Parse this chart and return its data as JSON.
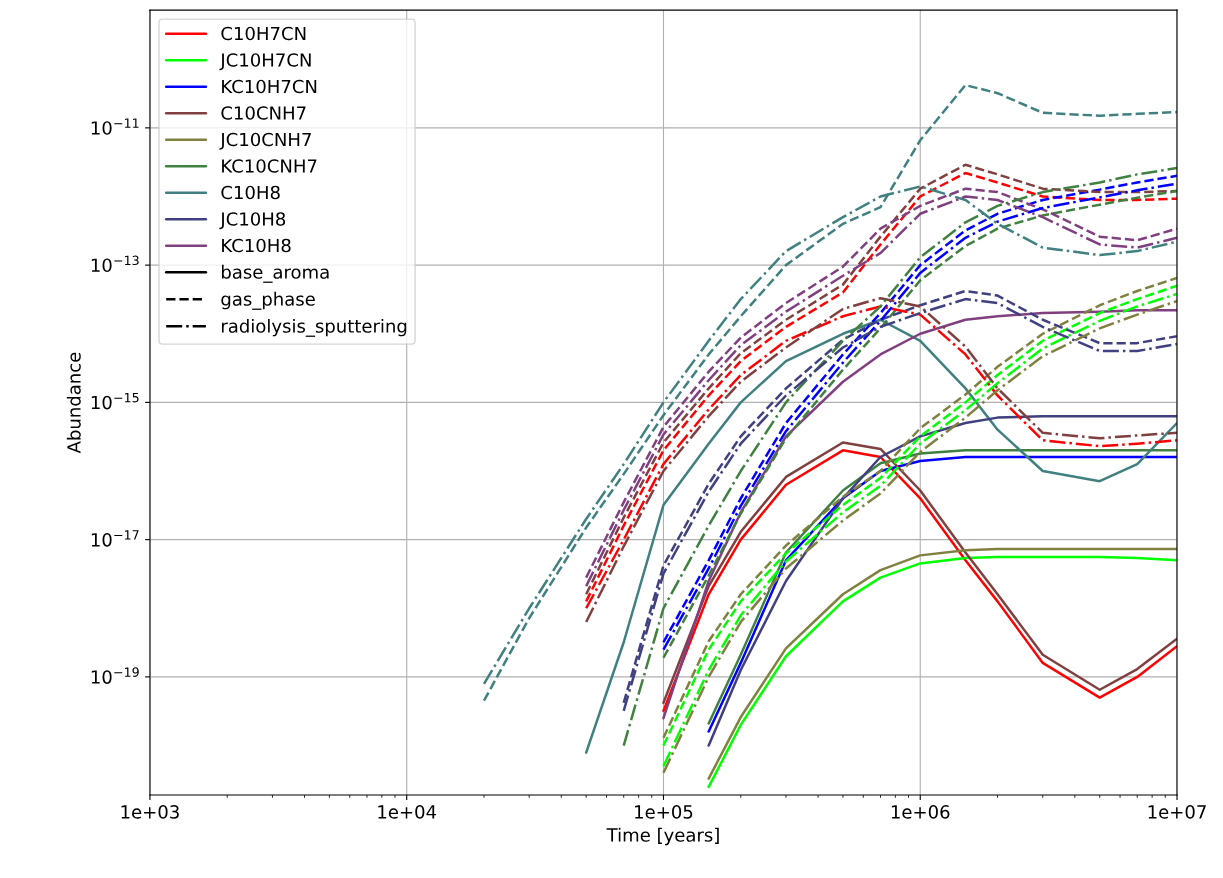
{
  "chart_data": {
    "type": "line",
    "xlabel": "Time [years]",
    "ylabel": "Abundance",
    "log": "xy",
    "grid": true,
    "legend": "top left",
    "xlim": [
      1000,
      10000000
    ],
    "ylim": [
      1.9e-21,
      5.2e-10
    ],
    "xticks": [
      {
        "value": 1000,
        "label": "1e+03"
      },
      {
        "value": 10000,
        "label": "1e+04"
      },
      {
        "value": 100000,
        "label": "1e+05"
      },
      {
        "value": 1000000,
        "label": "1e+06"
      },
      {
        "value": 10000000,
        "label": "1e+07"
      }
    ],
    "yticks": [
      {
        "value": 1e-19,
        "label": "10$^{−19}$"
      },
      {
        "value": 1e-17,
        "label": "10$^{−17}$"
      },
      {
        "value": 1e-15,
        "label": "10$^{−15}$"
      },
      {
        "value": 1e-13,
        "label": "10$^{−13}$"
      },
      {
        "value": 1e-11,
        "label": "10$^{−11}$"
      }
    ],
    "x": [
      20000,
      30000,
      50000,
      70000,
      100000,
      150000,
      200000,
      300000,
      500000,
      700000,
      1000000,
      1500000,
      2000000,
      3000000,
      5000000,
      7000000,
      10000000
    ],
    "series": [
      {
        "name": "C10H7CN",
        "color": "#ff0000",
        "line_style": "solid",
        "values": [
          null,
          null,
          null,
          null,
          3.2e-20,
          1.6e-18,
          1e-17,
          6.3e-17,
          2e-16,
          1.6e-16,
          4e-17,
          5e-18,
          1.26e-18,
          1.6e-19,
          5e-20,
          1e-19,
          2.8e-19
        ]
      },
      {
        "name": "JC10H7CN",
        "color": "#00ff00",
        "line_style": "solid",
        "values": [
          null,
          null,
          null,
          null,
          null,
          2.5e-21,
          2e-20,
          2e-19,
          1.26e-18,
          2.8e-18,
          4.5e-18,
          5.4e-18,
          5.6e-18,
          5.6e-18,
          5.6e-18,
          5.4e-18,
          5e-18
        ]
      },
      {
        "name": "KC10H7CN",
        "color": "#0000ff",
        "line_style": "solid",
        "values": [
          null,
          null,
          null,
          null,
          null,
          1.6e-20,
          1.6e-19,
          5e-18,
          4e-17,
          1e-16,
          1.4e-16,
          1.6e-16,
          1.6e-16,
          1.6e-16,
          1.6e-16,
          1.6e-16,
          1.6e-16
        ]
      },
      {
        "name": "C10CNH7",
        "color": "#804040",
        "line_style": "solid",
        "values": [
          null,
          null,
          null,
          null,
          4.2e-20,
          2.1e-18,
          1.3e-17,
          8.2e-17,
          2.6e-16,
          2.1e-16,
          5.2e-17,
          6.5e-18,
          1.6e-18,
          2.1e-19,
          6.5e-20,
          1.3e-19,
          3.6e-19
        ]
      },
      {
        "name": "JC10CNH7",
        "color": "#808040",
        "line_style": "solid",
        "values": [
          null,
          null,
          null,
          null,
          null,
          3.3e-21,
          2.6e-20,
          2.6e-19,
          1.6e-18,
          3.6e-18,
          5.9e-18,
          7e-18,
          7.3e-18,
          7.3e-18,
          7.3e-18,
          7.3e-18,
          7.3e-18
        ]
      },
      {
        "name": "KC10CNH7",
        "color": "#408040",
        "line_style": "solid",
        "values": [
          null,
          null,
          null,
          null,
          null,
          2.1e-20,
          2.1e-19,
          6.5e-18,
          5.2e-17,
          1.3e-16,
          1.8e-16,
          2e-16,
          2e-16,
          2e-16,
          2e-16,
          2e-16,
          2e-16
        ]
      },
      {
        "name": "C10H8",
        "color": "#408080",
        "line_style": "solid",
        "values": [
          null,
          null,
          7.9e-21,
          3.2e-19,
          3.2e-17,
          2.5e-16,
          1e-15,
          4e-15,
          1e-14,
          1.6e-14,
          7.9e-15,
          1.6e-15,
          4e-16,
          1e-16,
          7.1e-17,
          1.26e-16,
          5e-16
        ]
      },
      {
        "name": "JC10H8",
        "color": "#404080",
        "line_style": "solid",
        "values": [
          null,
          null,
          null,
          null,
          null,
          1e-20,
          1.26e-19,
          2.5e-18,
          4e-17,
          1.6e-16,
          3.2e-16,
          5e-16,
          6e-16,
          6.3e-16,
          6.3e-16,
          6.3e-16,
          6.3e-16
        ]
      },
      {
        "name": "KC10H8",
        "color": "#804080",
        "line_style": "solid",
        "values": [
          null,
          null,
          null,
          null,
          2.5e-20,
          2.5e-18,
          2.5e-17,
          3.2e-16,
          2e-15,
          5e-15,
          1e-14,
          1.6e-14,
          1.8e-14,
          2e-14,
          2.1e-14,
          2.2e-14,
          2.2e-14
        ]
      },
      {
        "color": "#ff0000",
        "line_style": "dashed",
        "values": [
          null,
          null,
          1.26e-18,
          1.6e-17,
          2e-16,
          1.26e-15,
          4e-15,
          1.26e-14,
          4e-14,
          2e-13,
          1e-12,
          2.2e-12,
          1.6e-12,
          1e-12,
          8.9e-13,
          8.9e-13,
          9.3e-13
        ]
      },
      {
        "color": "#00ff00",
        "line_style": "dashed",
        "values": [
          null,
          null,
          null,
          null,
          1e-20,
          2.5e-19,
          1.26e-18,
          6.3e-18,
          3.2e-17,
          7.9e-17,
          3.2e-16,
          1e-15,
          2.5e-15,
          7.9e-15,
          2e-14,
          3.2e-14,
          5e-14
        ]
      },
      {
        "color": "#0000ff",
        "line_style": "dashed",
        "values": [
          null,
          null,
          null,
          null,
          3.2e-19,
          5e-18,
          4e-17,
          5e-16,
          5e-15,
          2e-14,
          1e-13,
          3.2e-13,
          5.6e-13,
          8.9e-13,
          1.26e-12,
          1.6e-12,
          2e-12
        ]
      },
      {
        "color": "#804040",
        "line_style": "dashed",
        "values": [
          null,
          null,
          1.6e-18,
          2.1e-17,
          2.6e-16,
          1.6e-15,
          5.2e-15,
          1.6e-14,
          5.2e-14,
          2.6e-13,
          1.3e-12,
          2.9e-12,
          2.1e-12,
          1.3e-12,
          1.16e-12,
          1.16e-12,
          1.2e-12
        ]
      },
      {
        "color": "#808040",
        "line_style": "dashed",
        "values": [
          null,
          null,
          null,
          null,
          1.3e-20,
          3.3e-19,
          1.6e-18,
          8.2e-18,
          4.2e-17,
          1e-16,
          4.2e-16,
          1.3e-15,
          3.3e-15,
          1e-14,
          2.6e-14,
          4.2e-14,
          6.5e-14
        ]
      },
      {
        "color": "#408040",
        "line_style": "dashed",
        "values": [
          null,
          null,
          null,
          null,
          1.9e-19,
          3e-18,
          2.4e-17,
          3e-16,
          3e-15,
          1.2e-14,
          6e-14,
          1.9e-13,
          3.4e-13,
          5.3e-13,
          7.6e-13,
          9.6e-13,
          1.2e-12
        ]
      },
      {
        "color": "#408080",
        "line_style": "dashed",
        "values": [
          4.5e-20,
          7.2e-19,
          1.5e-17,
          9e-17,
          6.5e-16,
          5e-15,
          1.8e-14,
          1e-13,
          4e-13,
          7e-13,
          6.6e-12,
          4.2e-11,
          3.2e-11,
          1.66e-11,
          1.5e-11,
          1.6e-11,
          1.7e-11
        ]
      },
      {
        "color": "#404080",
        "line_style": "dashed",
        "values": [
          null,
          null,
          null,
          4.2e-20,
          4.2e-18,
          6.5e-17,
          3.2e-16,
          1.6e-15,
          8.2e-15,
          1.6e-14,
          2.6e-14,
          4.2e-14,
          3.6e-14,
          1.6e-14,
          7.3e-15,
          7.3e-15,
          9.2e-15
        ]
      },
      {
        "color": "#804080",
        "line_style": "dashed",
        "values": [
          null,
          null,
          2.8e-18,
          3.5e-17,
          4.4e-16,
          2.8e-15,
          8.8e-15,
          2.8e-14,
          9.5e-14,
          3.4e-13,
          7.3e-13,
          1.3e-12,
          1.16e-12,
          6.5e-13,
          2.6e-13,
          2.3e-13,
          3.4e-13
        ]
      },
      {
        "color": "#ff0000",
        "line_style": "dashdot",
        "values": [
          null,
          null,
          1e-18,
          1e-17,
          1.26e-16,
          7.9e-16,
          2.5e-15,
          7.9e-15,
          1.8e-14,
          2.5e-14,
          1.9e-14,
          5e-15,
          1.26e-15,
          2.8e-16,
          2.3e-16,
          2.5e-16,
          2.8e-16
        ]
      },
      {
        "color": "#00ff00",
        "line_style": "dashdot",
        "values": [
          null,
          null,
          null,
          null,
          5e-21,
          1.26e-19,
          7.9e-19,
          4.8e-18,
          2.5e-17,
          6.1e-17,
          2.5e-16,
          7.7e-16,
          1.9e-15,
          6.1e-15,
          1.54e-14,
          2.5e-14,
          3.8e-14
        ]
      },
      {
        "color": "#0000ff",
        "line_style": "dashdot",
        "values": [
          null,
          null,
          null,
          null,
          2.5e-19,
          3.8e-18,
          3.1e-17,
          3.8e-16,
          3.8e-15,
          1.54e-14,
          7.7e-14,
          2.5e-13,
          4.3e-13,
          6.8e-13,
          9.7e-13,
          1.23e-12,
          1.54e-12
        ]
      },
      {
        "color": "#804040",
        "line_style": "dashdot",
        "values": [
          null,
          null,
          6.3e-19,
          8e-18,
          1e-16,
          6.3e-16,
          2e-15,
          6.3e-15,
          2.3e-14,
          3.3e-14,
          2.5e-14,
          6.5e-15,
          1.6e-15,
          3.6e-16,
          3e-16,
          3.3e-16,
          3.6e-16
        ]
      },
      {
        "color": "#808040",
        "line_style": "dashdot",
        "values": [
          null,
          null,
          null,
          null,
          4e-21,
          1e-19,
          6.3e-19,
          3.8e-18,
          1.9e-17,
          4.7e-17,
          1.9e-16,
          6e-16,
          1.5e-15,
          4.7e-15,
          1.2e-14,
          1.9e-14,
          3e-14
        ]
      },
      {
        "color": "#408040",
        "line_style": "dashdot",
        "values": [
          null,
          null,
          null,
          1e-20,
          1e-18,
          1.6e-17,
          1e-16,
          1e-15,
          7.9e-15,
          2.5e-14,
          1.3e-13,
          4.2e-13,
          7.3e-13,
          1.16e-12,
          1.6e-12,
          2.1e-12,
          2.6e-12
        ]
      },
      {
        "color": "#408080",
        "line_style": "dashdot",
        "values": [
          7.9e-20,
          1e-18,
          2e-17,
          1.26e-16,
          1e-15,
          7.9e-15,
          3.2e-14,
          1.6e-13,
          5e-13,
          1e-12,
          1.4e-12,
          8.9e-13,
          4e-13,
          1.8e-13,
          1.4e-13,
          1.6e-13,
          2.2e-13
        ]
      },
      {
        "color": "#404080",
        "line_style": "dashdot",
        "values": [
          null,
          null,
          null,
          3.2e-20,
          3.2e-18,
          5e-17,
          2.5e-16,
          1.26e-15,
          6.3e-15,
          1.26e-14,
          2e-14,
          3.2e-14,
          2.8e-14,
          1.26e-14,
          5.6e-15,
          5.6e-15,
          7.1e-15
        ]
      },
      {
        "color": "#804080",
        "line_style": "dashdot",
        "values": [
          null,
          null,
          2.1e-18,
          2.7e-17,
          3.4e-16,
          2.1e-15,
          6.8e-15,
          2.1e-14,
          7e-14,
          1.5e-13,
          5.6e-13,
          1e-12,
          8.9e-13,
          5e-13,
          2e-13,
          1.8e-13,
          2.5e-13
        ]
      },
      {
        "name": "base_aroma",
        "color": "#000000",
        "line_style": "solid",
        "values": [
          null,
          null,
          null,
          null,
          null,
          null,
          null,
          null,
          null,
          null,
          null,
          null,
          null,
          null,
          null,
          null,
          null
        ]
      },
      {
        "name": "gas_phase",
        "color": "#000000",
        "line_style": "dashed",
        "values": [
          null,
          null,
          null,
          null,
          null,
          null,
          null,
          null,
          null,
          null,
          null,
          null,
          null,
          null,
          null,
          null,
          null
        ]
      },
      {
        "name": "radiolysis_sputtering",
        "color": "#000000",
        "line_style": "dashdot",
        "values": [
          null,
          null,
          null,
          null,
          null,
          null,
          null,
          null,
          null,
          null,
          null,
          null,
          null,
          null,
          null,
          null,
          null
        ]
      }
    ]
  }
}
